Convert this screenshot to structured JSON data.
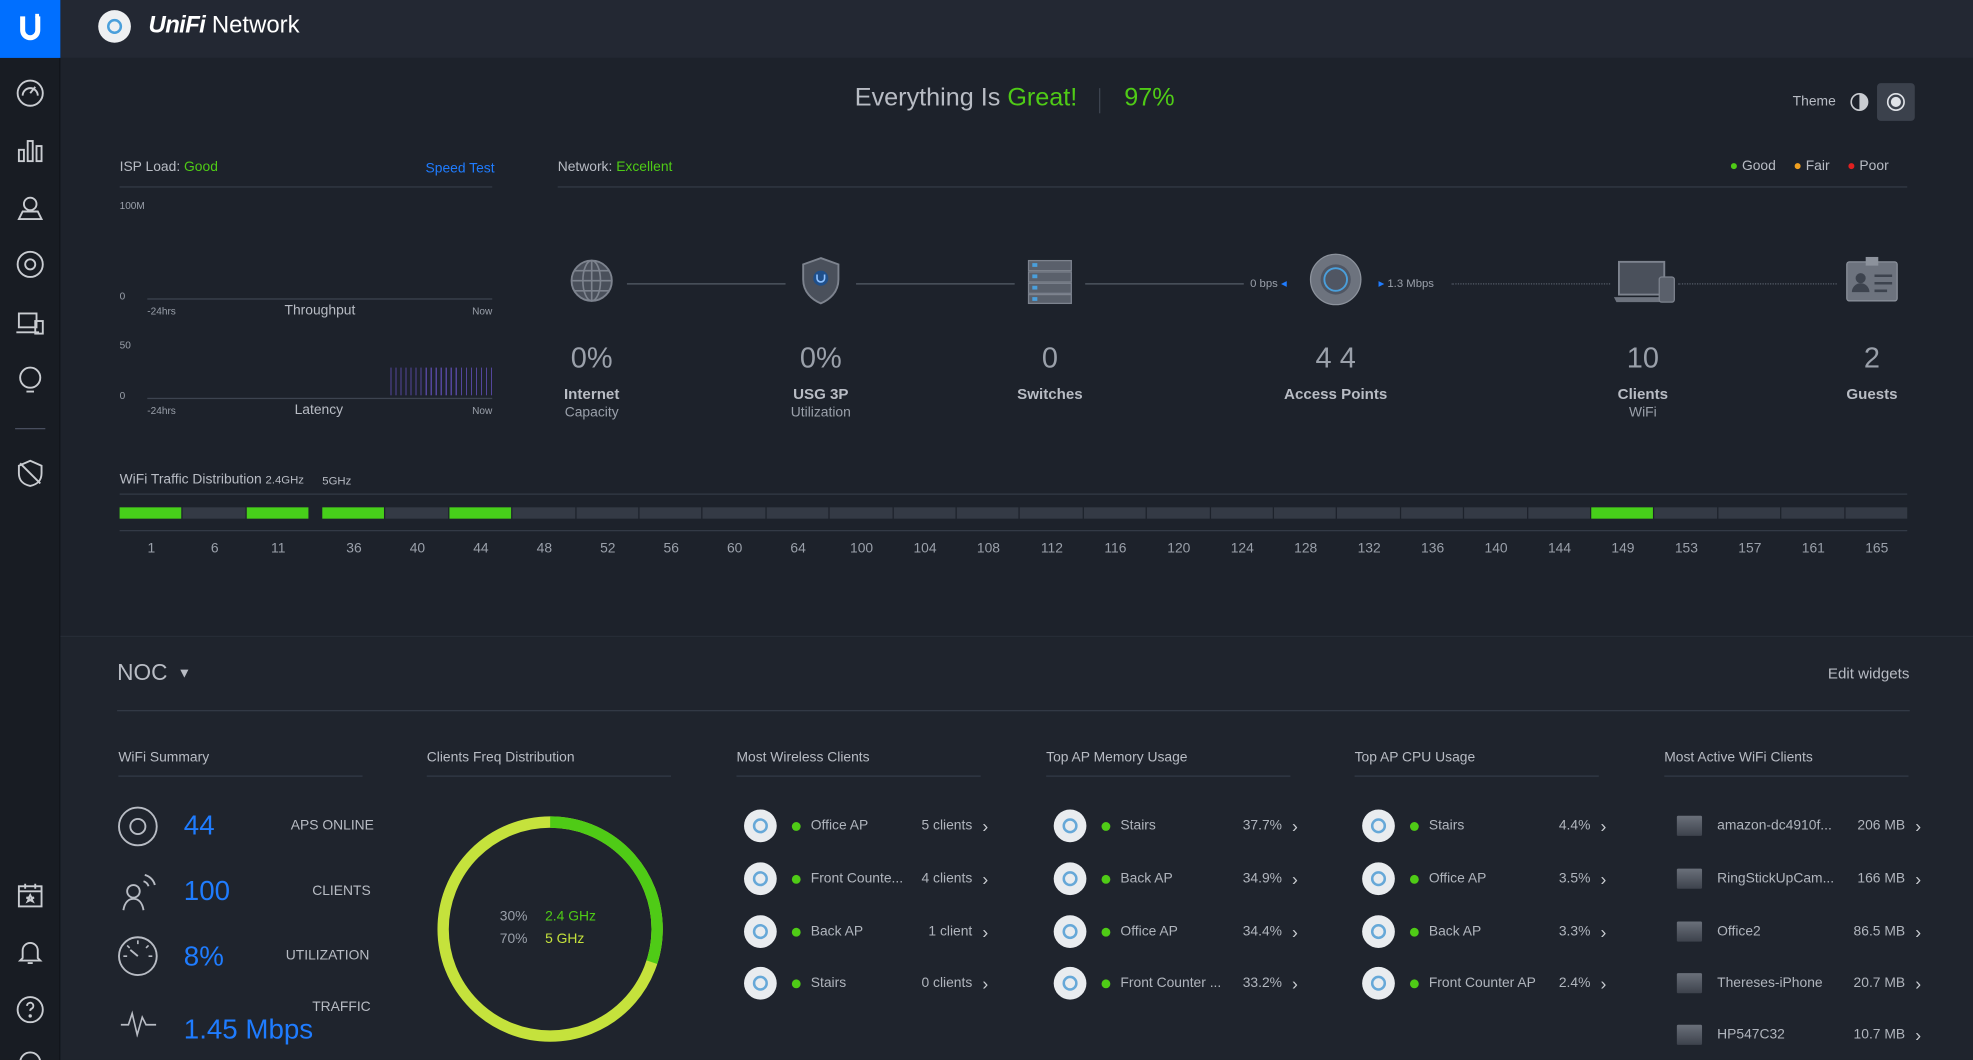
{
  "brand": {
    "title_italic": "UniFi",
    "title_rest": " Network"
  },
  "status": {
    "message": "Everything Is ",
    "highlight": "Great!",
    "score": "97%"
  },
  "theme": {
    "label": "Theme"
  },
  "isp": {
    "label": "ISP Load:",
    "status": "Good",
    "speed_test": "Speed Test",
    "tput_max": "100M",
    "tput_zero": "0",
    "tput_start": "-24hrs",
    "tput_title": "Throughput",
    "tput_end": "Now",
    "lat_max": "50",
    "lat_zero": "0",
    "lat_start": "-24hrs",
    "lat_title": "Latency",
    "lat_end": "Now"
  },
  "network": {
    "label": "Network:",
    "status": "Excellent",
    "legend": [
      {
        "label": "Good",
        "color": "#4fcb16"
      },
      {
        "label": "Fair",
        "color": "#f0a020"
      },
      {
        "label": "Poor",
        "color": "#e02020"
      }
    ],
    "rate_down": "0 bps",
    "rate_up": "1.3 Mbps"
  },
  "devices": [
    {
      "value": "0%",
      "label": "Internet",
      "sub": "Capacity",
      "icon": "globe-icon"
    },
    {
      "value": "0%",
      "label": "USG 3P",
      "sub": "Utilization",
      "icon": "gateway-shield-icon"
    },
    {
      "value": "0",
      "label": "Switches",
      "sub": "",
      "icon": "switch-icon"
    },
    {
      "value": "4 4",
      "label": "Access Points",
      "sub": "",
      "icon": "access-point-icon"
    },
    {
      "value": "10",
      "label": "Clients",
      "sub": "WiFi",
      "icon": "laptop-icon"
    },
    {
      "value": "2",
      "label": "Guests",
      "sub": "",
      "icon": "guest-badge-icon"
    }
  ],
  "wifi_dist": {
    "title": "WiFi Traffic Distribution",
    "band24": "2.4GHz",
    "band5": "5GHz",
    "channels24": [
      "1",
      "6",
      "11"
    ],
    "active24": [
      true,
      false,
      true
    ],
    "channels5": [
      "36",
      "40",
      "44",
      "48",
      "52",
      "56",
      "60",
      "64",
      "100",
      "104",
      "108",
      "112",
      "116",
      "120",
      "124",
      "128",
      "132",
      "136",
      "140",
      "144",
      "149",
      "153",
      "157",
      "161",
      "165"
    ],
    "active5": [
      true,
      false,
      true,
      false,
      false,
      false,
      false,
      false,
      false,
      false,
      false,
      false,
      false,
      false,
      false,
      false,
      false,
      false,
      false,
      false,
      true,
      false,
      false,
      false,
      false
    ]
  },
  "noc": {
    "title": "NOC",
    "edit": "Edit widgets"
  },
  "summary": {
    "title": "WiFi Summary",
    "rows": [
      {
        "value": "44",
        "label": "APS ONLINE",
        "icon": "ap-ring-icon"
      },
      {
        "value": "100",
        "label": "CLIENTS",
        "icon": "client-signal-icon"
      },
      {
        "value": "8%",
        "label": "UTILIZATION",
        "icon": "gauge-icon"
      },
      {
        "value": "1.45 Mbps",
        "label": "TRAFFIC",
        "icon": "pulse-icon"
      }
    ]
  },
  "freq": {
    "title": "Clients Freq Distribution",
    "p24": "30%",
    "l24": "2.4 GHz",
    "p5": "70%",
    "l5": "5 GHz",
    "frac24": 0.3,
    "c24": "#4fcb16",
    "c5": "#c5e23c"
  },
  "most_clients": {
    "title": "Most Wireless Clients",
    "rows": [
      {
        "name": "Office AP",
        "val": "5 clients"
      },
      {
        "name": "Front Counte...",
        "val": "4 clients"
      },
      {
        "name": "Back AP",
        "val": "1 client"
      },
      {
        "name": "Stairs",
        "val": "0 clients"
      }
    ]
  },
  "mem": {
    "title": "Top AP Memory Usage",
    "rows": [
      {
        "name": "Stairs",
        "val": "37.7%"
      },
      {
        "name": "Back AP",
        "val": "34.9%"
      },
      {
        "name": "Office AP",
        "val": "34.4%"
      },
      {
        "name": "Front Counter ...",
        "val": "33.2%"
      }
    ]
  },
  "cpu": {
    "title": "Top AP CPU Usage",
    "rows": [
      {
        "name": "Stairs",
        "val": "4.4%"
      },
      {
        "name": "Office AP",
        "val": "3.5%"
      },
      {
        "name": "Back AP",
        "val": "3.3%"
      },
      {
        "name": "Front Counter AP",
        "val": "2.4%"
      }
    ]
  },
  "active": {
    "title": "Most Active WiFi Clients",
    "rows": [
      {
        "name": "amazon-dc4910f...",
        "val": "206 MB"
      },
      {
        "name": "RingStickUpCam...",
        "val": "166 MB"
      },
      {
        "name": "Office2",
        "val": "86.5 MB"
      },
      {
        "name": "Thereses-iPhone",
        "val": "20.7 MB"
      },
      {
        "name": "HP547C32",
        "val": "10.7 MB"
      }
    ]
  }
}
